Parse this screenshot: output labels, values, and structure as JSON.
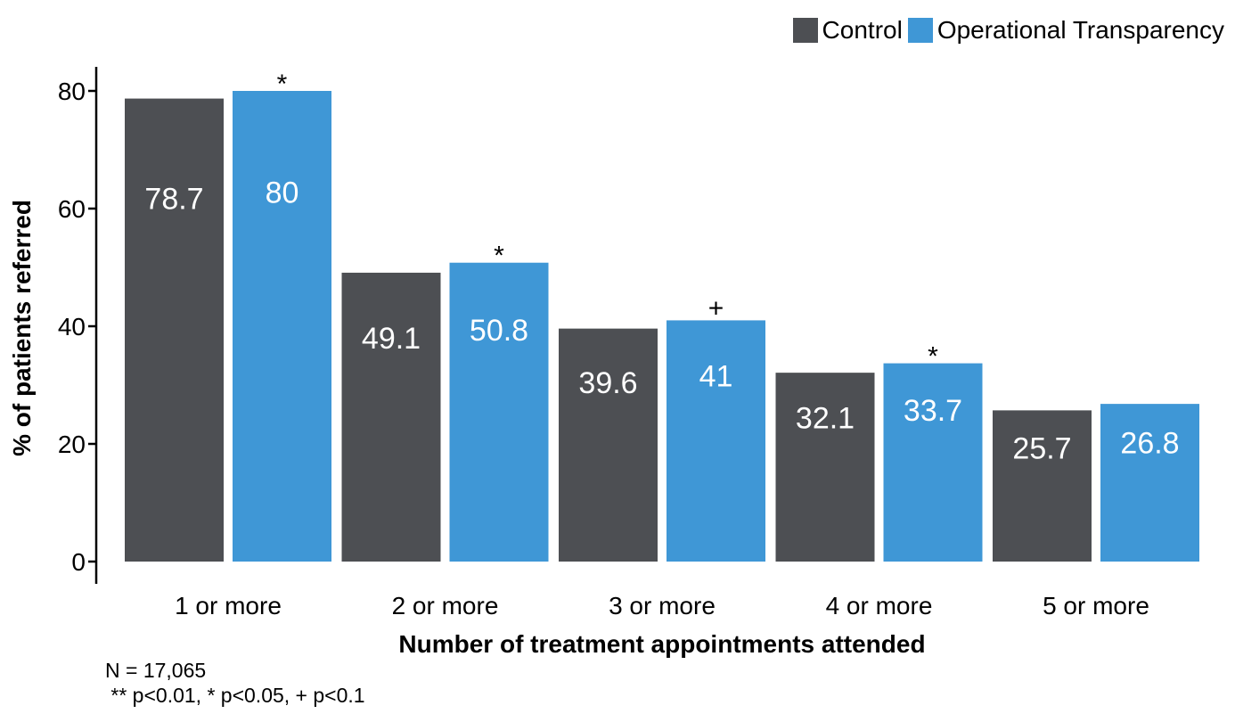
{
  "chart_data": {
    "type": "bar",
    "title": "",
    "xlabel": "Number of treatment appointments attended",
    "ylabel": "% of patients referred",
    "ylim": [
      0,
      80
    ],
    "yticks": [
      0,
      20,
      40,
      60,
      80
    ],
    "categories": [
      "1 or more",
      "2 or more",
      "3 or more",
      "4 or more",
      "5 or more"
    ],
    "series": [
      {
        "name": "Control",
        "color": "#4d4f53",
        "values": [
          78.7,
          49.1,
          39.6,
          32.1,
          25.7
        ],
        "labels": [
          "78.7",
          "49.1",
          "39.6",
          "32.1",
          "25.7"
        ]
      },
      {
        "name": "Operational Transparency",
        "color": "#3f97d6",
        "values": [
          80,
          50.8,
          41,
          33.7,
          26.8
        ],
        "labels": [
          "80",
          "50.8",
          "41",
          "33.7",
          "26.8"
        ]
      }
    ],
    "significance": [
      "*",
      "*",
      "+",
      "*",
      ""
    ],
    "legend_position": "top-right",
    "grid": false
  },
  "notes": {
    "n": "N = 17,065",
    "sig": " ** p<0.01, * p<0.05, + p<0.1"
  }
}
